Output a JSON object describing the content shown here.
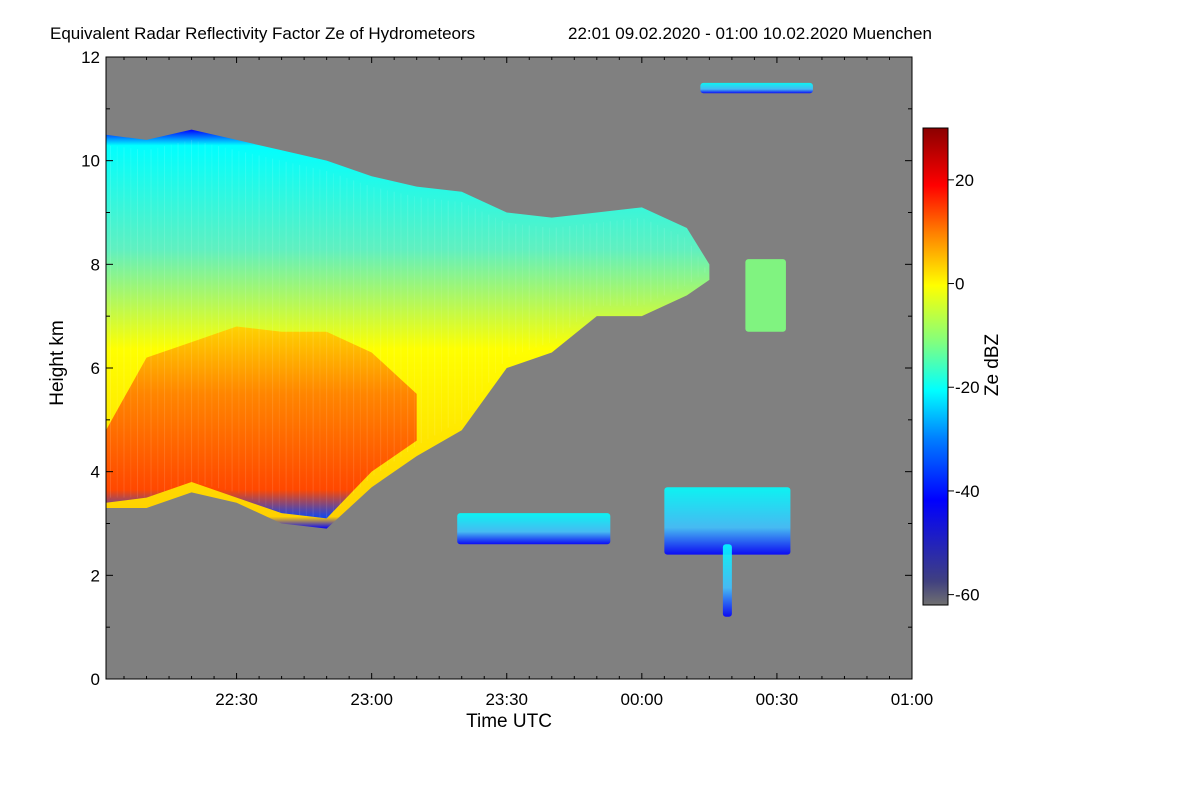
{
  "chart_data": {
    "type": "heatmap",
    "title": "Equivalent Radar Reflectivity Factor Ze of Hydrometeors",
    "period": "22:01 09.02.2020 - 01:00 10.02.2020 Muenchen",
    "xlabel": "Time UTC",
    "ylabel": "Height km",
    "colorbar_label": "Ze dBZ",
    "x_range_min": [
      1321,
      1500
    ],
    "y_range_km": [
      0,
      12
    ],
    "z_range_dbz": [
      -62,
      30
    ],
    "x_ticks": [
      {
        "value": 1350,
        "label": "22:30"
      },
      {
        "value": 1380,
        "label": "23:00"
      },
      {
        "value": 1410,
        "label": "23:30"
      },
      {
        "value": 1440,
        "label": "00:00"
      },
      {
        "value": 1470,
        "label": "00:30"
      },
      {
        "value": 1500,
        "label": "01:00"
      }
    ],
    "y_ticks": [
      {
        "value": 0,
        "label": "0"
      },
      {
        "value": 2,
        "label": "2"
      },
      {
        "value": 4,
        "label": "4"
      },
      {
        "value": 6,
        "label": "6"
      },
      {
        "value": 8,
        "label": "8"
      },
      {
        "value": 10,
        "label": "10"
      },
      {
        "value": 12,
        "label": "12"
      }
    ],
    "colorbar_ticks": [
      {
        "value": 20,
        "label": "20"
      },
      {
        "value": 0,
        "label": "0"
      },
      {
        "value": -20,
        "label": "-20"
      },
      {
        "value": -40,
        "label": "-40"
      },
      {
        "value": -60,
        "label": "-60"
      }
    ],
    "background_color": "#808080",
    "colormap": [
      "#8b0000",
      "#ff0000",
      "#ff8000",
      "#ffff00",
      "#80ff80",
      "#00ffff",
      "#0080ff",
      "#0000ff",
      "#000080"
    ],
    "main_cloud": {
      "times_min": [
        1321,
        1330,
        1340,
        1350,
        1360,
        1370,
        1380,
        1390,
        1400,
        1410,
        1420,
        1430,
        1440,
        1450,
        1455
      ],
      "top_km": [
        10.5,
        10.4,
        10.6,
        10.4,
        10.2,
        10.0,
        9.7,
        9.5,
        9.4,
        9.0,
        8.9,
        9.0,
        9.1,
        8.7,
        8.0
      ],
      "base_km": [
        3.3,
        3.3,
        3.6,
        3.4,
        3.0,
        2.9,
        3.7,
        4.3,
        4.8,
        6.0,
        6.3,
        7.0,
        7.0,
        7.4,
        7.7
      ],
      "core_top_km": [
        4.8,
        6.2,
        6.5,
        6.8,
        6.7,
        6.7,
        6.3,
        5.5,
        null,
        null,
        null,
        null,
        null,
        null,
        null
      ],
      "core_base_km": [
        3.4,
        3.5,
        3.8,
        3.5,
        3.2,
        3.1,
        4.0,
        4.6,
        null,
        null,
        null,
        null,
        null,
        null,
        null
      ],
      "peak_dbz": 15
    },
    "features": [
      {
        "name": "isolated-cirrus-upper",
        "t0": 1453,
        "t1": 1478,
        "h0": 11.3,
        "h1": 11.5,
        "dbz": -25
      },
      {
        "name": "isolated-cloud-0030",
        "t0": 1463,
        "t1": 1472,
        "h0": 6.7,
        "h1": 8.1,
        "dbz": -15
      },
      {
        "name": "low-cloud-0015",
        "t0": 1445,
        "t1": 1473,
        "h0": 2.4,
        "h1": 3.7,
        "dbz": -25
      },
      {
        "name": "precip-streak-0017",
        "t0": 1458,
        "t1": 1460,
        "h0": 1.2,
        "h1": 2.6,
        "dbz": -30
      },
      {
        "name": "low-fragments-2330",
        "t0": 1399,
        "t1": 1433,
        "h0": 2.6,
        "h1": 3.2,
        "dbz": -35
      }
    ]
  }
}
